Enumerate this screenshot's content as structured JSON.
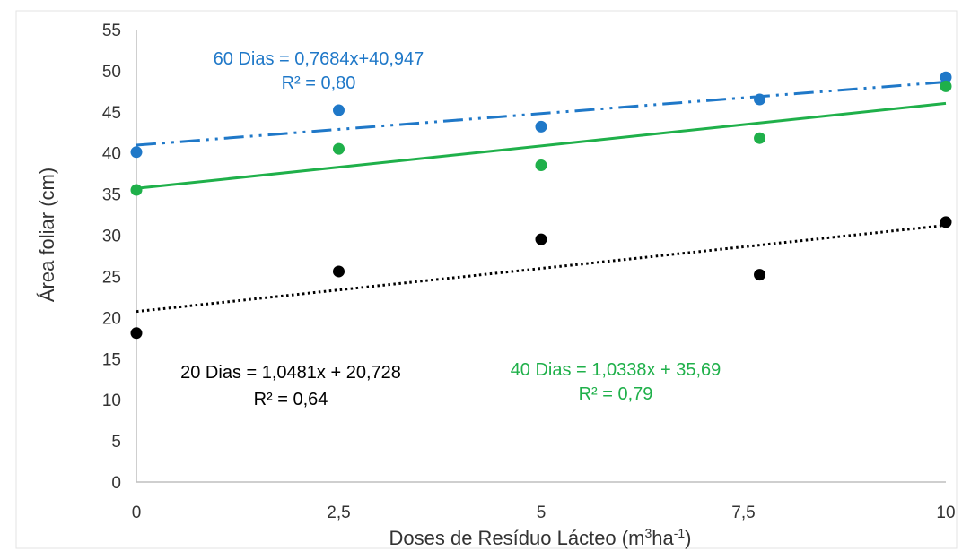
{
  "chart_data": {
    "type": "scatter",
    "xlabel": {
      "main": "Doses de Resíduo Lácteo (m",
      "sup1": "3",
      "mid": "ha",
      "sup2": "-1",
      "end": ")"
    },
    "ylabel": "Área foliar (cm)",
    "xlim": [
      0,
      10
    ],
    "ylim": [
      0,
      55
    ],
    "x_ticks": [
      {
        "value": 0,
        "label": "0"
      },
      {
        "value": 2.5,
        "label": "2,5"
      },
      {
        "value": 5,
        "label": "5"
      },
      {
        "value": 7.5,
        "label": "7,5"
      },
      {
        "value": 10,
        "label": "10"
      }
    ],
    "y_ticks": [
      {
        "value": 0,
        "label": "0"
      },
      {
        "value": 5,
        "label": "5"
      },
      {
        "value": 10,
        "label": "10"
      },
      {
        "value": 15,
        "label": "15"
      },
      {
        "value": 20,
        "label": "20"
      },
      {
        "value": 25,
        "label": "25"
      },
      {
        "value": 30,
        "label": "30"
      },
      {
        "value": 35,
        "label": "35"
      },
      {
        "value": 40,
        "label": "40"
      },
      {
        "value": 45,
        "label": "45"
      },
      {
        "value": 50,
        "label": "50"
      },
      {
        "value": 55,
        "label": "55"
      }
    ],
    "grid": false,
    "series": [
      {
        "key": "d60",
        "color": "#1f78c8",
        "points": [
          {
            "x": 0,
            "y": 40.1
          },
          {
            "x": 2.5,
            "y": 45.2
          },
          {
            "x": 5,
            "y": 43.2
          },
          {
            "x": 7.7,
            "y": 46.5
          },
          {
            "x": 10,
            "y": 49.2
          }
        ],
        "trend": {
          "slope": 0.7684,
          "intercept": 40.947,
          "dash": "long-dash-dot-dot"
        },
        "equation": "60 Dias = 0,7684x+40,947",
        "r2": "R² = 0,80"
      },
      {
        "key": "d40",
        "color": "#1fb04a",
        "points": [
          {
            "x": 0,
            "y": 35.5
          },
          {
            "x": 2.5,
            "y": 40.5
          },
          {
            "x": 5,
            "y": 38.5
          },
          {
            "x": 7.7,
            "y": 41.8
          },
          {
            "x": 10,
            "y": 48.1
          }
        ],
        "trend": {
          "slope": 1.0338,
          "intercept": 35.69,
          "dash": "solid"
        },
        "equation": "40 Dias = 1,0338x + 35,69",
        "r2": "R² = 0,79"
      },
      {
        "key": "d20",
        "color": "#000000",
        "points": [
          {
            "x": 0,
            "y": 18.1
          },
          {
            "x": 2.5,
            "y": 25.6
          },
          {
            "x": 5,
            "y": 29.5
          },
          {
            "x": 7.7,
            "y": 25.2
          },
          {
            "x": 10,
            "y": 31.6
          }
        ],
        "trend": {
          "slope": 1.0481,
          "intercept": 20.728,
          "dash": "dotted"
        },
        "equation": "20 Dias = 1,0481x + 20,728",
        "r2": "R² = 0,64"
      }
    ]
  }
}
